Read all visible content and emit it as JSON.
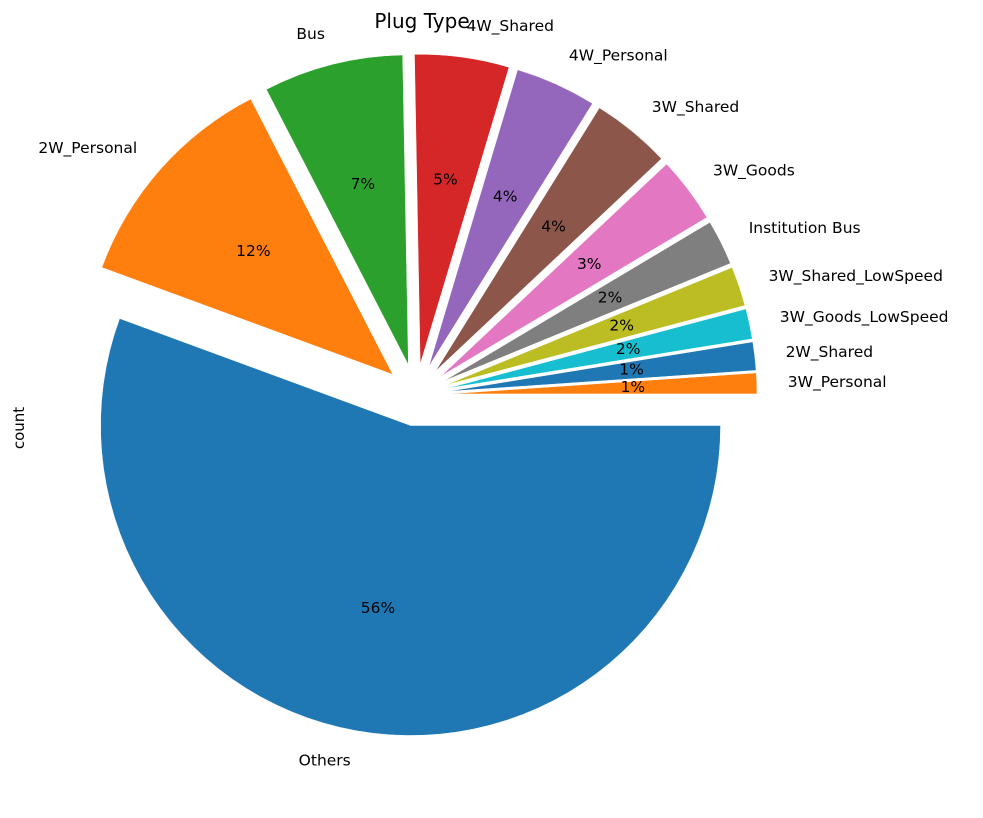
{
  "chart_data": {
    "type": "pie",
    "title": "Plug Type",
    "ylabel": "count",
    "autopct_format": "{p}%",
    "slices": [
      {
        "label": "Others",
        "percent": 56.5,
        "pct_text": "56%",
        "color": "#1f77b4"
      },
      {
        "label": "2W_Personal",
        "percent": 12.0,
        "pct_text": "12%",
        "color": "#ff7f0e"
      },
      {
        "label": "Bus",
        "percent": 7.4,
        "pct_text": "7%",
        "color": "#2ca02c"
      },
      {
        "label": "4W_Shared",
        "percent": 5.0,
        "pct_text": "5%",
        "color": "#d62728"
      },
      {
        "label": "4W_Personal",
        "percent": 4.3,
        "pct_text": "4%",
        "color": "#9467bd"
      },
      {
        "label": "3W_Shared",
        "percent": 4.2,
        "pct_text": "4%",
        "color": "#8c564b"
      },
      {
        "label": "3W_Goods",
        "percent": 3.5,
        "pct_text": "3%",
        "color": "#e377c2"
      },
      {
        "label": "Institution Bus",
        "percent": 2.4,
        "pct_text": "2%",
        "color": "#7f7f7f"
      },
      {
        "label": "3W_Shared_LowSpeed",
        "percent": 2.1,
        "pct_text": "2%",
        "color": "#bcbd22"
      },
      {
        "label": "3W_Goods_LowSpeed",
        "percent": 1.6,
        "pct_text": "2%",
        "color": "#17becf"
      },
      {
        "label": "2W_Shared",
        "percent": 1.5,
        "pct_text": "1%",
        "color": "#1f77b4"
      },
      {
        "label": "3W_Personal",
        "percent": 1.1,
        "pct_text": "1%",
        "color": "#ff7f0e"
      }
    ],
    "start_angle_deg": 0,
    "direction": "clockwise",
    "explode": true,
    "legend": "none"
  }
}
